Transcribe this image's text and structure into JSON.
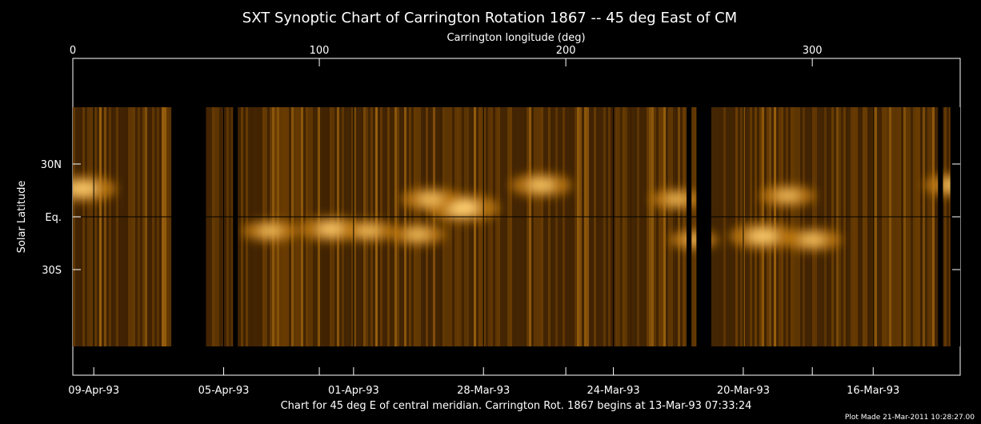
{
  "chart_data": {
    "type": "heatmap",
    "title": "SXT Synoptic Chart of Carrington Rotation 1867 -- 45 deg East of CM",
    "top_axis": {
      "label": "Carrington longitude (deg)",
      "range": [
        0,
        360
      ],
      "ticks": [
        {
          "value": 0,
          "label": "0"
        },
        {
          "value": 100,
          "label": "100"
        },
        {
          "value": 200,
          "label": "200"
        },
        {
          "value": 300,
          "label": "300"
        }
      ]
    },
    "left_axis": {
      "label": "Solar Latitude",
      "range": [
        -90,
        90
      ],
      "ticks": [
        {
          "value": 30,
          "label": "30N"
        },
        {
          "value": 0,
          "label": "Eq."
        },
        {
          "value": -30,
          "label": "30S"
        }
      ]
    },
    "bottom_axis": {
      "ticks": [
        {
          "lon": 8.5,
          "label": "09-Apr-93"
        },
        {
          "lon": 61.2,
          "label": "05-Apr-93"
        },
        {
          "lon": 113.9,
          "label": "01-Apr-93"
        },
        {
          "lon": 166.6,
          "label": "28-Mar-93"
        },
        {
          "lon": 219.3,
          "label": "24-Mar-93"
        },
        {
          "lon": 272.0,
          "label": "20-Mar-93"
        },
        {
          "lon": 324.7,
          "label": "16-Mar-93"
        }
      ]
    },
    "data_gaps_lon": [
      [
        40,
        54
      ],
      [
        65,
        67
      ],
      [
        249,
        251
      ],
      [
        253,
        259
      ],
      [
        351,
        353
      ],
      [
        356,
        360
      ]
    ],
    "bright_regions": [
      {
        "lon": 4,
        "lat": 16,
        "intensity": 0.9
      },
      {
        "lon": 158,
        "lat": 5,
        "intensity": 1.0
      },
      {
        "lon": 145,
        "lat": 10,
        "intensity": 0.75
      },
      {
        "lon": 190,
        "lat": 18,
        "intensity": 0.8
      },
      {
        "lon": 105,
        "lat": -7,
        "intensity": 0.85
      },
      {
        "lon": 120,
        "lat": -8,
        "intensity": 0.7
      },
      {
        "lon": 80,
        "lat": -8,
        "intensity": 0.7
      },
      {
        "lon": 140,
        "lat": -10,
        "intensity": 0.7
      },
      {
        "lon": 280,
        "lat": -11,
        "intensity": 0.9
      },
      {
        "lon": 300,
        "lat": -13,
        "intensity": 0.75
      },
      {
        "lon": 290,
        "lat": 12,
        "intensity": 0.7
      },
      {
        "lon": 245,
        "lat": 10,
        "intensity": 0.65
      },
      {
        "lon": 358,
        "lat": 18,
        "intensity": 0.8
      },
      {
        "lon": 252,
        "lat": -13,
        "intensity": 0.6
      }
    ],
    "grid": true,
    "colormap": [
      "#000000",
      "#3a1e00",
      "#7a4600",
      "#c07a10",
      "#ffcf70"
    ],
    "footer": "Chart for 45 deg E of central meridian.  Carrington Rot. 1867 begins at 13-Mar-93 07:33:24",
    "plot_made": "Plot Made 21-Mar-2011 10:28:27.00"
  }
}
